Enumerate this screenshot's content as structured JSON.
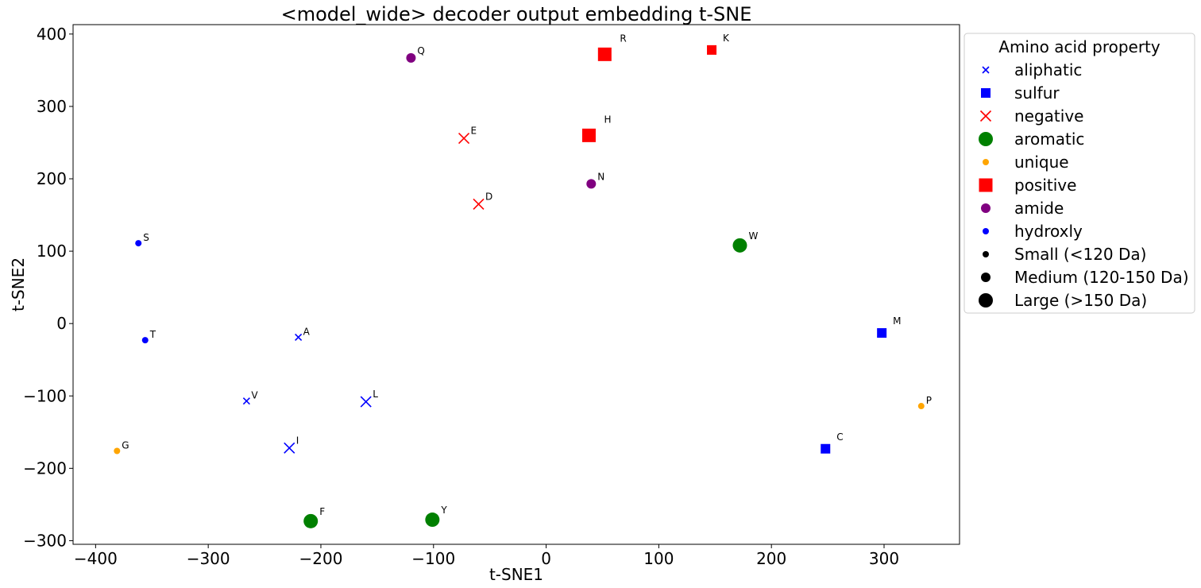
{
  "chart_data": {
    "type": "scatter",
    "title": "<model_wide> decoder output embedding t-SNE",
    "xlabel": "t-SNE1",
    "ylabel": "t-SNE2",
    "xlim": [
      -420,
      367
    ],
    "ylim": [
      -305,
      413
    ],
    "xticks": [
      -400,
      -300,
      -200,
      -100,
      0,
      100,
      200,
      300
    ],
    "yticks": [
      -300,
      -200,
      -100,
      0,
      100,
      200,
      300,
      400
    ],
    "xtick_labels": [
      "−400",
      "−300",
      "−200",
      "−100",
      "0",
      "100",
      "200",
      "300"
    ],
    "ytick_labels": [
      "−300",
      "−200",
      "−100",
      "0",
      "100",
      "200",
      "300",
      "400"
    ],
    "grid": false,
    "legend_placement": "outside-right-top",
    "categories": {
      "aliphatic": {
        "marker": "x",
        "color": "#0000ff"
      },
      "sulfur": {
        "marker": "square",
        "color": "#0000ff"
      },
      "negative": {
        "marker": "x",
        "color": "#ff0000"
      },
      "aromatic": {
        "marker": "circle",
        "color": "#008000"
      },
      "unique": {
        "marker": "circle",
        "color": "#ffa500"
      },
      "positive": {
        "marker": "square",
        "color": "#ff0000"
      },
      "amide": {
        "marker": "circle",
        "color": "#800080"
      },
      "hydroxly": {
        "marker": "circle",
        "color": "#0000ff"
      }
    },
    "points": [
      {
        "label": "A",
        "x": -220,
        "y": -19,
        "category": "aliphatic",
        "size": "small"
      },
      {
        "label": "V",
        "x": -266,
        "y": -107,
        "category": "aliphatic",
        "size": "small"
      },
      {
        "label": "L",
        "x": -160,
        "y": -108,
        "category": "aliphatic",
        "size": "medium"
      },
      {
        "label": "I",
        "x": -228,
        "y": -172,
        "category": "aliphatic",
        "size": "medium"
      },
      {
        "label": "M",
        "x": 298,
        "y": -13,
        "category": "sulfur",
        "size": "medium"
      },
      {
        "label": "C",
        "x": 248,
        "y": -173,
        "category": "sulfur",
        "size": "medium"
      },
      {
        "label": "E",
        "x": -73,
        "y": 256,
        "category": "negative",
        "size": "medium"
      },
      {
        "label": "D",
        "x": -60,
        "y": 165,
        "category": "negative",
        "size": "medium"
      },
      {
        "label": "W",
        "x": 172,
        "y": 108,
        "category": "aromatic",
        "size": "large"
      },
      {
        "label": "F",
        "x": -209,
        "y": -273,
        "category": "aromatic",
        "size": "large"
      },
      {
        "label": "Y",
        "x": -101,
        "y": -271,
        "category": "aromatic",
        "size": "large"
      },
      {
        "label": "G",
        "x": -381,
        "y": -176,
        "category": "unique",
        "size": "small"
      },
      {
        "label": "P",
        "x": 333,
        "y": -114,
        "category": "unique",
        "size": "small"
      },
      {
        "label": "R",
        "x": 52,
        "y": 372,
        "category": "positive",
        "size": "large"
      },
      {
        "label": "H",
        "x": 38,
        "y": 260,
        "category": "positive",
        "size": "large"
      },
      {
        "label": "K",
        "x": 147,
        "y": 378,
        "category": "positive",
        "size": "medium"
      },
      {
        "label": "Q",
        "x": -120,
        "y": 367,
        "category": "amide",
        "size": "medium"
      },
      {
        "label": "N",
        "x": 40,
        "y": 193,
        "category": "amide",
        "size": "medium"
      },
      {
        "label": "S",
        "x": -362,
        "y": 111,
        "category": "hydroxly",
        "size": "small"
      },
      {
        "label": "T",
        "x": -356,
        "y": -23,
        "category": "hydroxly",
        "size": "small"
      }
    ],
    "legend": {
      "title": "Amino acid property",
      "entries": [
        {
          "text": "aliphatic",
          "marker": "x",
          "color": "#0000ff",
          "size": "small"
        },
        {
          "text": "sulfur",
          "marker": "square",
          "color": "#0000ff",
          "size": "medium"
        },
        {
          "text": "negative",
          "marker": "x",
          "color": "#ff0000",
          "size": "medium"
        },
        {
          "text": "aromatic",
          "marker": "circle",
          "color": "#008000",
          "size": "large"
        },
        {
          "text": "unique",
          "marker": "circle",
          "color": "#ffa500",
          "size": "small"
        },
        {
          "text": "positive",
          "marker": "square",
          "color": "#ff0000",
          "size": "large"
        },
        {
          "text": "amide",
          "marker": "circle",
          "color": "#800080",
          "size": "medium"
        },
        {
          "text": "hydroxly",
          "marker": "circle",
          "color": "#0000ff",
          "size": "small"
        },
        {
          "text": "Small (<120 Da)",
          "marker": "circle",
          "color": "#000000",
          "size": "small"
        },
        {
          "text": "Medium (120-150 Da)",
          "marker": "circle",
          "color": "#000000",
          "size": "medium"
        },
        {
          "text": "Large (>150 Da)",
          "marker": "circle",
          "color": "#000000",
          "size": "large"
        }
      ]
    }
  }
}
